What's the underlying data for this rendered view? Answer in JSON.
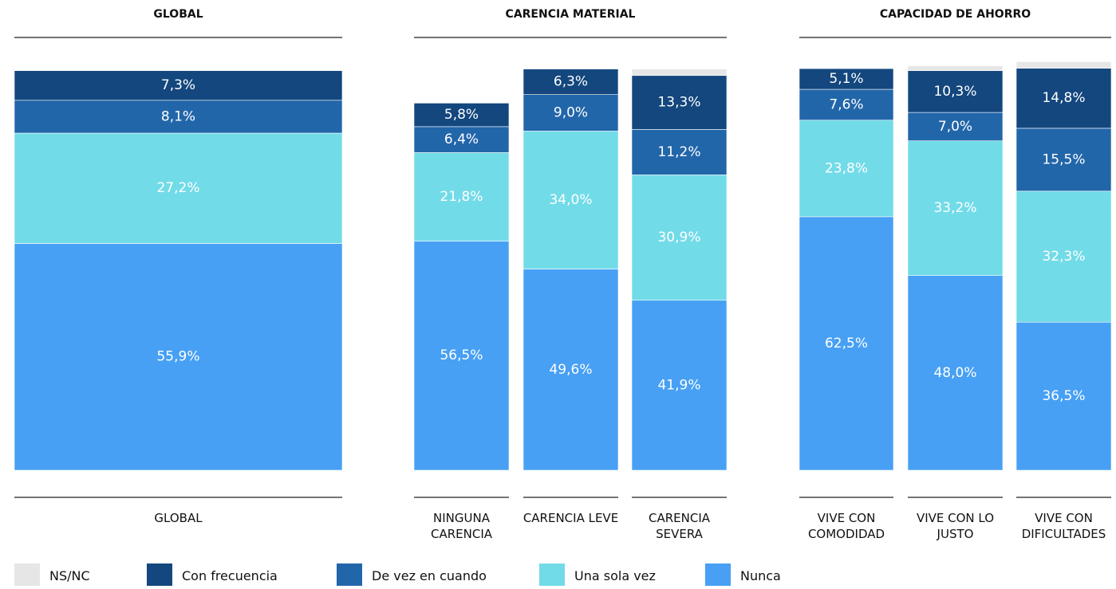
{
  "chart_data": {
    "type": "bar",
    "stacked": true,
    "ylim": [
      0,
      100
    ],
    "panels": [
      {
        "title": "GLOBAL",
        "categories": [
          "GLOBAL"
        ]
      },
      {
        "title": "CARENCIA MATERIAL",
        "categories": [
          "NINGUNA CARENCIA",
          "CARENCIA LEVE",
          "CARENCIA SEVERA"
        ]
      },
      {
        "title": "CAPACIDAD DE AHORRO",
        "categories": [
          "VIVE CON COMODIDAD",
          "VIVE CON LO JUSTO",
          "VIVE CON DIFICULTADES"
        ]
      }
    ],
    "series": [
      {
        "name": "NS/NC",
        "color": "#e6e6e6",
        "values": [
          0,
          0,
          0,
          1.6,
          0,
          1.2,
          1.6
        ]
      },
      {
        "name": "Con frecuencia",
        "color": "#13477e",
        "values": [
          7.3,
          5.8,
          6.3,
          13.3,
          5.1,
          10.3,
          14.8
        ],
        "value_labels": [
          "7,3%",
          "5,8%",
          "6,3%",
          "13,3%",
          "5,1%",
          "10,3%",
          "14,8%"
        ]
      },
      {
        "name": "De vez en cuando",
        "color": "#2266aa",
        "values": [
          8.1,
          6.4,
          9.0,
          11.2,
          7.6,
          7.0,
          15.5
        ],
        "value_labels": [
          "8,1%",
          "6,4%",
          "9,0%",
          "11,2%",
          "7,6%",
          "7,0%",
          "15,5%"
        ]
      },
      {
        "name": "Una sola vez",
        "color": "#72dbe8",
        "values": [
          27.2,
          21.8,
          34.0,
          30.9,
          23.8,
          33.2,
          32.3
        ],
        "value_labels": [
          "27,2%",
          "21,8%",
          "34,0%",
          "30,9%",
          "23,8%",
          "33,2%",
          "32,3%"
        ]
      },
      {
        "name": "Nunca",
        "color": "#47a0f4",
        "values": [
          55.9,
          56.5,
          49.6,
          41.9,
          62.5,
          48.0,
          36.5
        ],
        "value_labels": [
          "55,9%",
          "56,5%",
          "49,6%",
          "41,9%",
          "62,5%",
          "48,0%",
          "36,5%"
        ]
      }
    ]
  }
}
